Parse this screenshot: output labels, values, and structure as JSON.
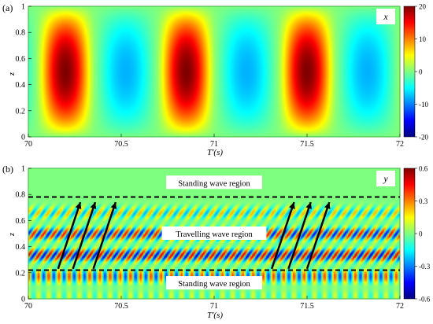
{
  "colors": {
    "jet": [
      "#00007f",
      "#0000ff",
      "#007fff",
      "#00ffff",
      "#7fff7f",
      "#ffff00",
      "#ff7f00",
      "#ff0000",
      "#7f0000"
    ],
    "plot_border": "#3cb43c",
    "guide_line": "#000000",
    "arrow": "#000000"
  },
  "chart_data": [
    {
      "panel_label": "(a)",
      "type": "heatmap",
      "title": "x",
      "xlabel": "T'(s)",
      "ylabel": "z",
      "xlim": [
        70,
        72
      ],
      "ylim": [
        0,
        1
      ],
      "xticks": [
        "70",
        "70.5",
        "71",
        "71.5",
        "72"
      ],
      "yticks": [
        "0",
        "0.2",
        "0.4",
        "0.6",
        "0.8",
        "1"
      ],
      "colorbar": {
        "min": -20,
        "max": 20,
        "ticks": [
          "20",
          "10",
          "0",
          "-10",
          "-20"
        ]
      },
      "field": {
        "description": "standing mode, cos(2*pi*(t-70.2)/0.65) * sin(pi*z)",
        "amplitude_pos": 20,
        "amplitude_neg": -8,
        "period_s": 0.65,
        "crest_times": [
          70.2,
          70.85,
          71.5
        ]
      }
    },
    {
      "panel_label": "(b)",
      "type": "heatmap",
      "title": "y",
      "xlabel": "T'(s)",
      "ylabel": "z",
      "xlim": [
        70,
        72
      ],
      "ylim": [
        0,
        1
      ],
      "xticks": [
        "70",
        "70.5",
        "71",
        "71.5",
        "72"
      ],
      "yticks": [
        "0",
        "0.2",
        "0.4",
        "0.6",
        "0.8",
        "1"
      ],
      "colorbar": {
        "min": -0.6,
        "max": 0.6,
        "ticks": [
          "0.6",
          "0.3",
          "0",
          "-0.3",
          "-0.6"
        ]
      },
      "region_bounds_z": [
        0.22,
        0.78
      ],
      "regions": [
        {
          "label": "Standing wave region",
          "z": 0.89
        },
        {
          "label": "Travelling wave region",
          "z": 0.5
        },
        {
          "label": "Standing wave region",
          "z": 0.12
        }
      ],
      "arrows_t": [
        70.28,
        70.36,
        70.47,
        71.43,
        71.52,
        71.62
      ],
      "arrow_z": [
        0.23,
        0.74
      ],
      "field": {
        "amplitude": 0.55,
        "temporal_period_s": 0.055,
        "vertical_cells": 12
      }
    }
  ]
}
